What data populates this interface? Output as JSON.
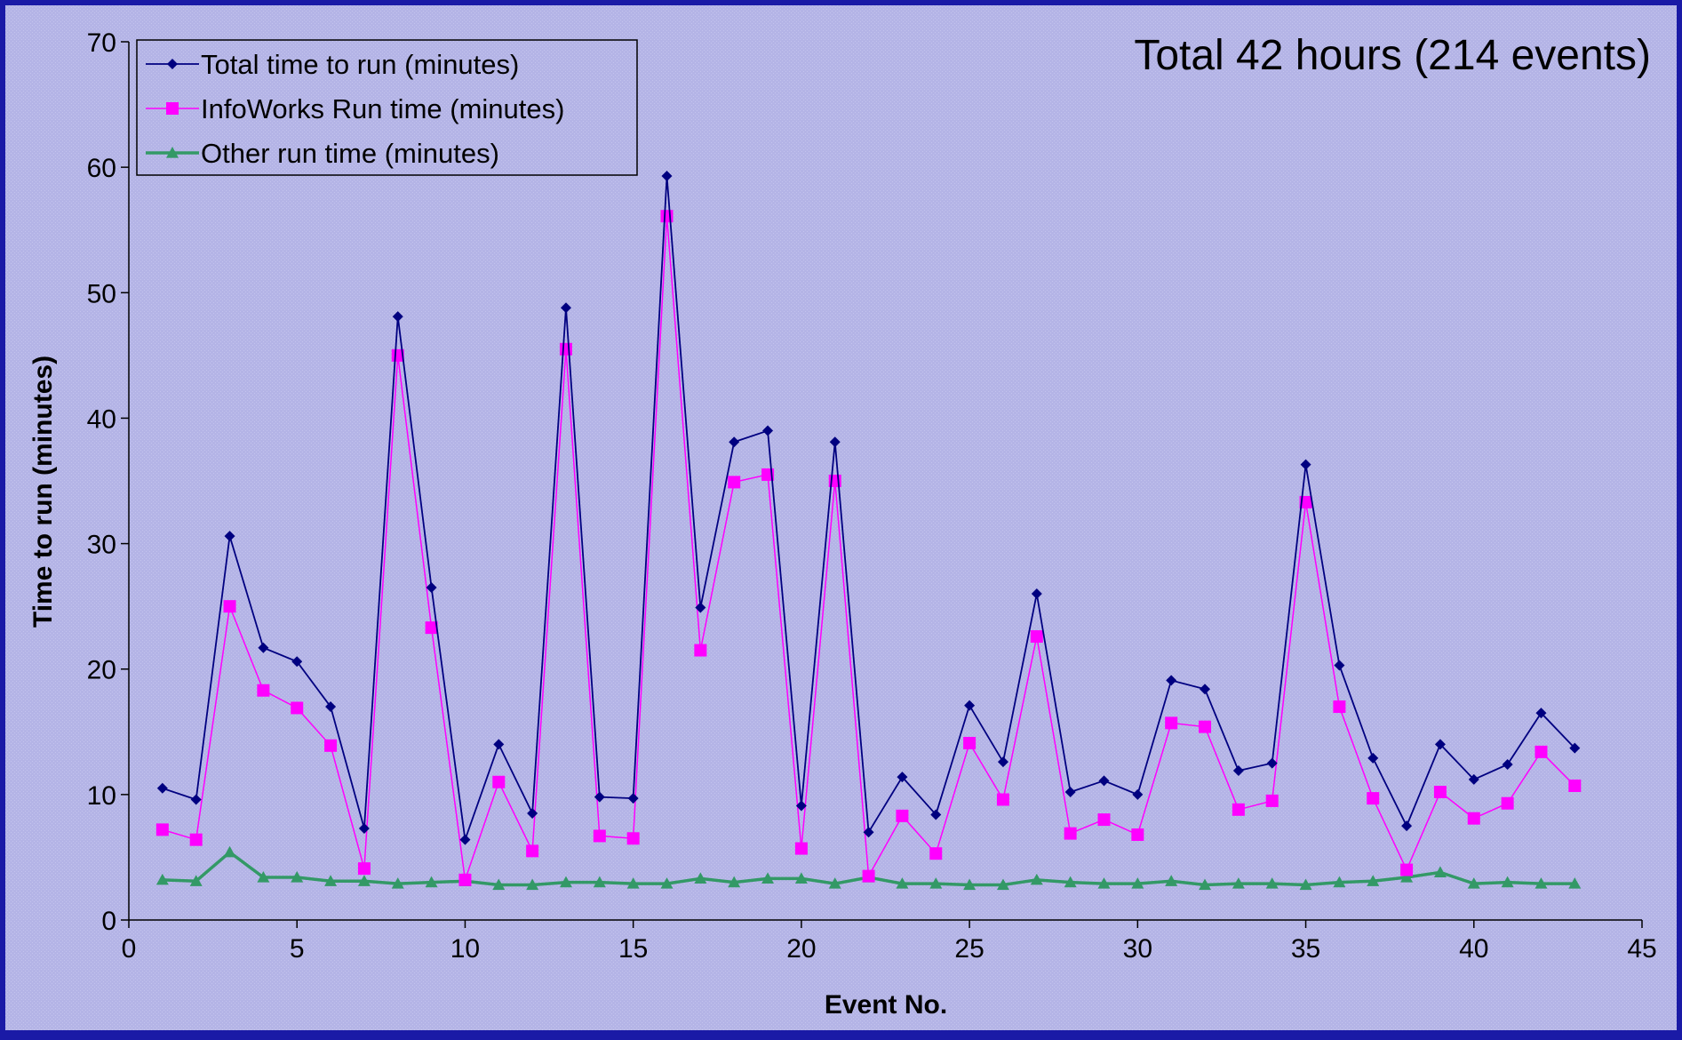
{
  "chart_data": {
    "type": "line",
    "title": "Total 42 hours (214 events)",
    "xlabel": "Event No.",
    "ylabel": "Time to run (minutes)",
    "xlim": [
      0,
      45
    ],
    "ylim": [
      0,
      70
    ],
    "xticks": [
      0,
      5,
      10,
      15,
      20,
      25,
      30,
      35,
      40,
      45
    ],
    "yticks": [
      0,
      10,
      20,
      30,
      40,
      50,
      60,
      70
    ],
    "grid": false,
    "legend_position": "top-left",
    "x": [
      1,
      2,
      3,
      4,
      5,
      6,
      7,
      8,
      9,
      10,
      11,
      12,
      13,
      14,
      15,
      16,
      17,
      18,
      19,
      20,
      21,
      22,
      23,
      24,
      25,
      26,
      27,
      28,
      29,
      30,
      31,
      32,
      33,
      34,
      35,
      36,
      37,
      38,
      39,
      40,
      41,
      42,
      43
    ],
    "series": [
      {
        "name": "Total time to run (minutes)",
        "color": "#000080",
        "marker": "diamond",
        "values": [
          10.5,
          9.6,
          30.6,
          21.7,
          20.6,
          17.0,
          7.3,
          48.1,
          26.5,
          6.4,
          14.0,
          8.5,
          48.8,
          9.8,
          9.7,
          59.3,
          24.9,
          38.1,
          39.0,
          9.1,
          38.1,
          7.0,
          11.4,
          8.4,
          17.1,
          12.6,
          26.0,
          10.2,
          11.1,
          10.0,
          19.1,
          18.4,
          11.9,
          12.5,
          36.3,
          20.3,
          12.9,
          7.5,
          14.0,
          11.2,
          12.4,
          16.5,
          13.7
        ]
      },
      {
        "name": "InfoWorks Run time (minutes)",
        "color": "#ff00ff",
        "marker": "square",
        "values": [
          7.2,
          6.4,
          25.0,
          18.3,
          16.9,
          13.9,
          4.1,
          45.0,
          23.3,
          3.2,
          11.0,
          5.5,
          45.5,
          6.7,
          6.5,
          56.1,
          21.5,
          34.9,
          35.5,
          5.7,
          35.0,
          3.5,
          8.3,
          5.3,
          14.1,
          9.6,
          22.6,
          6.9,
          8.0,
          6.8,
          15.7,
          15.4,
          8.8,
          9.5,
          33.3,
          17.0,
          9.7,
          4.0,
          10.2,
          8.1,
          9.3,
          13.4,
          10.7
        ]
      },
      {
        "name": "Other run time (minutes)",
        "color": "#339966",
        "marker": "triangle",
        "values": [
          3.2,
          3.1,
          5.4,
          3.4,
          3.4,
          3.1,
          3.1,
          2.9,
          3.0,
          3.1,
          2.8,
          2.8,
          3.0,
          3.0,
          2.9,
          2.9,
          3.3,
          3.0,
          3.3,
          3.3,
          2.9,
          3.4,
          2.9,
          2.9,
          2.8,
          2.8,
          3.2,
          3.0,
          2.9,
          2.9,
          3.1,
          2.8,
          2.9,
          2.9,
          2.8,
          3.0,
          3.1,
          3.4,
          3.8,
          2.9,
          3.0,
          2.9,
          2.9
        ]
      }
    ]
  }
}
